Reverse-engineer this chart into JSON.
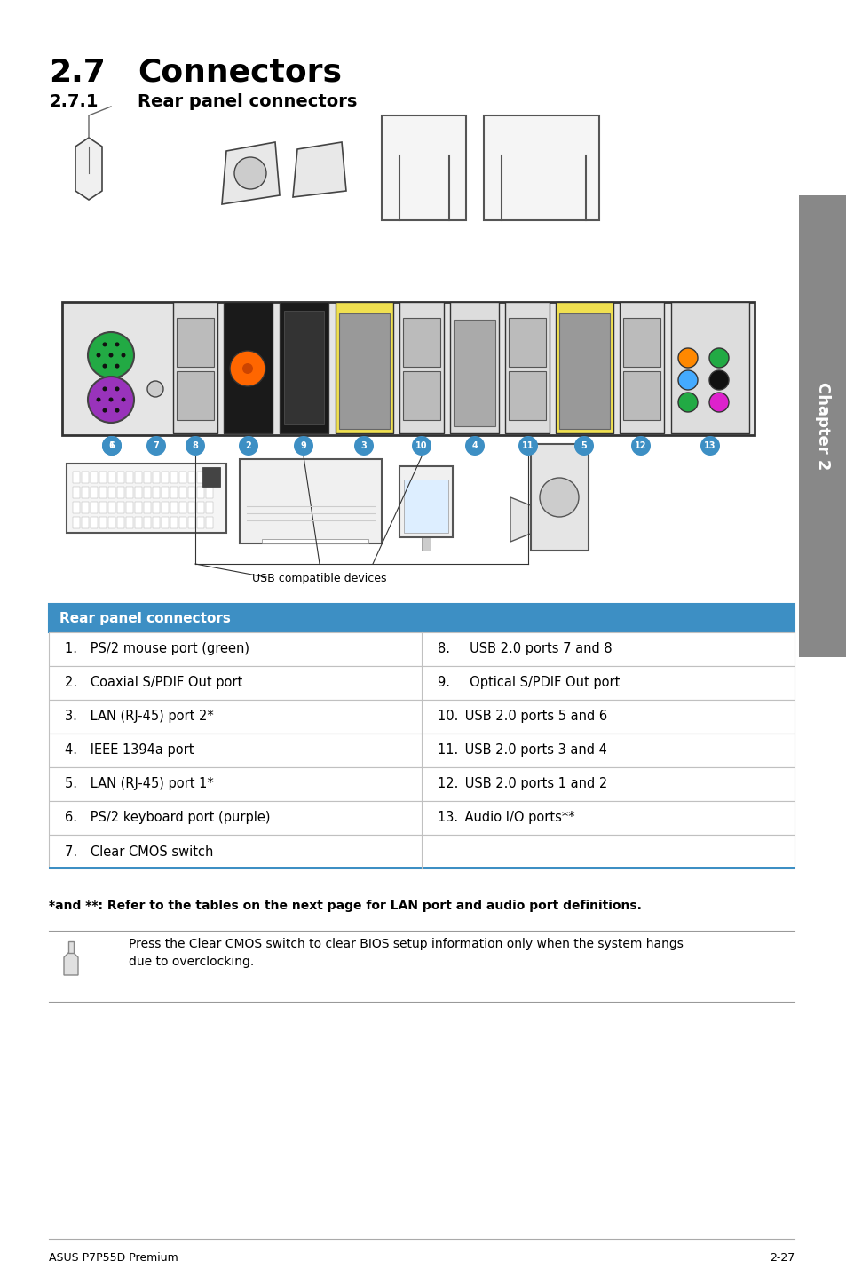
{
  "title_number": "2.7",
  "title_text": "Connectors",
  "subtitle_number": "2.7.1",
  "subtitle_text": "Rear panel connectors",
  "table_header": "Rear panel connectors",
  "table_header_bg": "#3d8fc4",
  "table_header_color": "#ffffff",
  "table_rows_left": [
    "1.  PS/2 mouse port (green)",
    "2.  Coaxial S/PDIF Out port",
    "3.  LAN (RJ-45) port 2*",
    "4.  IEEE 1394a port",
    "5.  LAN (RJ-45) port 1*",
    "6.  PS/2 keyboard port (purple)",
    "7.  Clear CMOS switch"
  ],
  "table_rows_right": [
    "8.   USB 2.0 ports 7 and 8",
    "9.   Optical S/PDIF Out port",
    "10. USB 2.0 ports 5 and 6",
    "11. USB 2.0 ports 3 and 4",
    "12. USB 2.0 ports 1 and 2",
    "13. Audio I/O ports**",
    ""
  ],
  "footnote": "*and **: Refer to the tables on the next page for LAN port and audio port definitions.",
  "note_text": "Press the Clear CMOS switch to clear BIOS setup information only when the system hangs\ndue to overclocking.",
  "footer_left": "ASUS P7P55D Premium",
  "footer_right": "2-27",
  "sidebar_text": "Chapter 2",
  "sidebar_bg": "#808080",
  "page_bg": "#ffffff",
  "table_border_color": "#3d8fc4",
  "table_row_bg_odd": "#ffffff",
  "table_row_bg_even": "#f5f5f5",
  "table_line_color": "#c0c0c0"
}
